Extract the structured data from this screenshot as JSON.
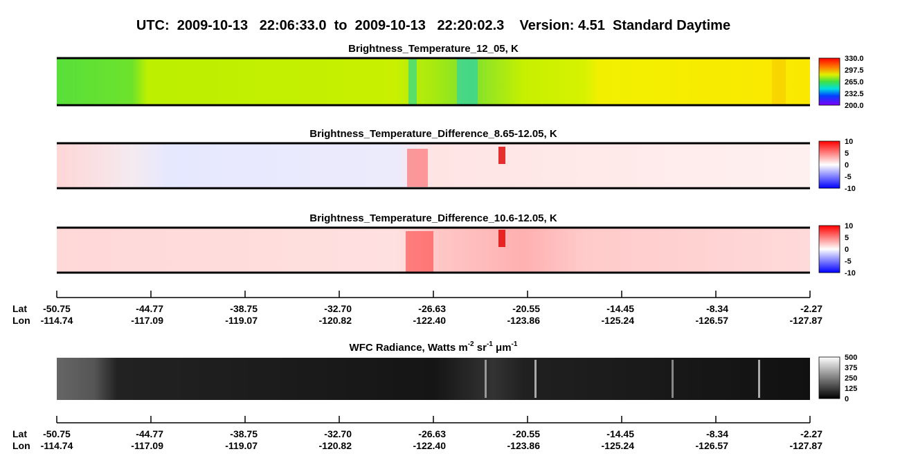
{
  "title": "UTC:  2009-10-13   22:06:33.0  to  2009-10-13   22:20:02.3    Version: 4.51  Standard Daytime",
  "panels": [
    {
      "title": "Brightness_Temperature_12_05, K",
      "colorbar": [
        "330.0",
        "297.5",
        "265.0",
        "232.5",
        "200.0"
      ]
    },
    {
      "title": "Brightness_Temperature_Difference_8.65-12.05, K",
      "colorbar": [
        "10",
        "5",
        "0",
        "-5",
        "-10"
      ]
    },
    {
      "title": "Brightness_Temperature_Difference_10.6-12.05, K",
      "colorbar": [
        "10",
        "5",
        "0",
        "-5",
        "-10"
      ]
    }
  ],
  "wfc": {
    "title_parts": [
      "WFC Radiance, Watts m",
      "-2",
      " sr",
      "-1",
      " μm",
      "-1"
    ],
    "colorbar": [
      "500",
      "375",
      "250",
      "125",
      "0"
    ]
  },
  "axis": {
    "lat_label": "Lat",
    "lon_label": "Lon",
    "lat": [
      "-50.75",
      "-44.77",
      "-38.75",
      "-32.70",
      "-26.63",
      "-20.55",
      "-14.45",
      "-8.34",
      "-2.27"
    ],
    "lon": [
      "-114.74",
      "-117.09",
      "-119.07",
      "-120.82",
      "-122.40",
      "-123.86",
      "-125.24",
      "-126.57",
      "-127.87"
    ]
  }
}
